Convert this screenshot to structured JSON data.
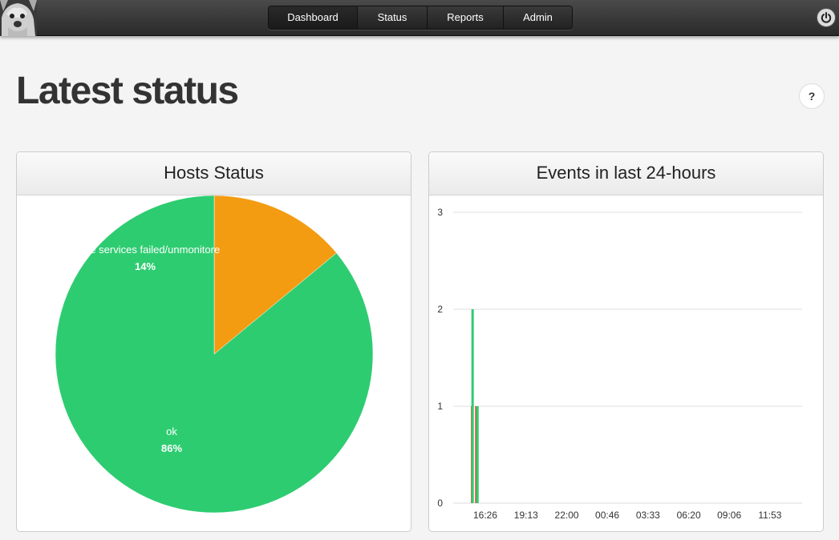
{
  "header": {
    "nav": [
      {
        "label": "Dashboard",
        "active": true
      },
      {
        "label": "Status",
        "active": false
      },
      {
        "label": "Reports",
        "active": false
      },
      {
        "label": "Admin",
        "active": false
      }
    ],
    "power_icon": "power-icon"
  },
  "page": {
    "title": "Latest status",
    "help_label": "?"
  },
  "colors": {
    "ok": "#2ecc71",
    "warn": "#f39c12",
    "fail": "#e74c3c"
  },
  "panels": {
    "hosts": {
      "title": "Hosts Status"
    },
    "events": {
      "title": "Events in last 24-hours"
    }
  },
  "chart_data": [
    {
      "type": "pie",
      "title": "Hosts Status",
      "slices": [
        {
          "label": "some services failed/unmonitored",
          "display_label": "some services failed/unmonitore",
          "value": 14,
          "percent_label": "14%",
          "color": "#f39c12"
        },
        {
          "label": "ok",
          "display_label": "ok",
          "value": 86,
          "percent_label": "86%",
          "color": "#2ecc71"
        }
      ]
    },
    {
      "type": "bar",
      "title": "Events in last 24-hours",
      "ylim": [
        0,
        3
      ],
      "yticks": [
        "0",
        "1",
        "2",
        "3"
      ],
      "xticks": [
        "16:26",
        "19:13",
        "22:00",
        "00:46",
        "03:33",
        "06:20",
        "09:06",
        "11:53"
      ],
      "series": [
        {
          "color": "#e74c3c",
          "bars": [
            {
              "at": "15:32",
              "y": 1
            },
            {
              "at": "15:49",
              "y": 1
            }
          ]
        },
        {
          "color": "#2ecc71",
          "bars": [
            {
              "at": "15:34",
              "y": 2
            },
            {
              "at": "15:54",
              "y": 1
            }
          ]
        }
      ]
    }
  ]
}
